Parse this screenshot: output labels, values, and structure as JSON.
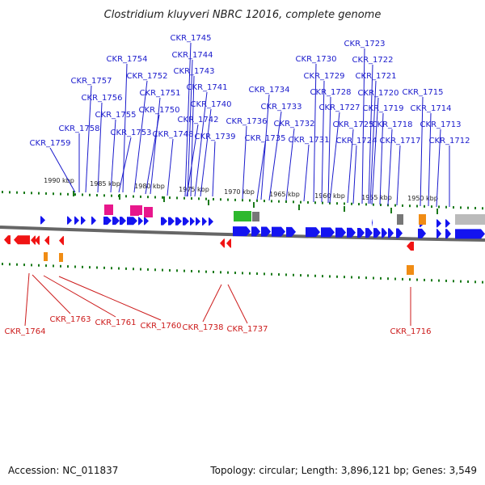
{
  "title": "Clostridium kluyveri NBRC 12016, complete genome",
  "footer": {
    "accession": "Accession: NC_011837",
    "summary": "Topology: circular; Length: 3,896,121 bp; Genes: 3,549"
  },
  "colors": {
    "plus_strand": "#1414f0",
    "minus_strand": "#f01414",
    "label_plus": "#1a1acc",
    "label_minus": "#cc1a1a",
    "trna": "#e8178c",
    "rrna": "#2db82d",
    "misc": "#f08c14",
    "pseudo": "#777777",
    "tick": "#1a7a1a"
  },
  "kbp_ticks": [
    "1990 kbp",
    "1985 kbp",
    "1980 kbp",
    "1975 kbp",
    "1970 kbp",
    "1965 kbp",
    "1960 kbp",
    "1955 kbp",
    "1950 kbp"
  ],
  "plus_genes": [
    "CKR_1759",
    "CKR_1758",
    "CKR_1757",
    "CKR_1756",
    "CKR_1755",
    "CKR_1754",
    "CKR_1753",
    "CKR_1752",
    "CKR_1751",
    "CKR_1750",
    "CKR_1748",
    "CKR_1745",
    "CKR_1744",
    "CKR_1743",
    "CKR_1742",
    "CKR_1741",
    "CKR_1740",
    "CKR_1739",
    "CKR_1736",
    "CKR_1735",
    "CKR_1734",
    "CKR_1733",
    "CKR_1732",
    "CKR_1731",
    "CKR_1730",
    "CKR_1729",
    "CKR_1728",
    "CKR_1727",
    "CKR_1725",
    "CKR_1724",
    "CKR_1723",
    "CKR_1722",
    "CKR_1721",
    "CKR_1720",
    "CKR_1719",
    "CKR_1718",
    "CKR_1717",
    "CKR_1715",
    "CKR_1714",
    "CKR_1713",
    "CKR_1712"
  ],
  "minus_genes": [
    "CKR_1764",
    "CKR_1763",
    "CKR_1761",
    "CKR_1760",
    "CKR_1738",
    "CKR_1737",
    "CKR_1716"
  ]
}
